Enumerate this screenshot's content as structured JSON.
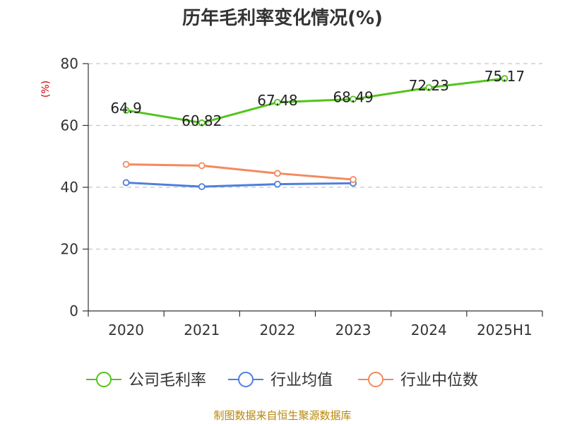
{
  "chart_data": {
    "type": "line",
    "title": "历年毛利率变化情况(%)",
    "unit_label": "(%)",
    "categories": [
      "2020",
      "2021",
      "2022",
      "2023",
      "2024",
      "2025H1"
    ],
    "ylim": [
      0,
      80
    ],
    "yticks": [
      0,
      20,
      40,
      60,
      80
    ],
    "grid": true,
    "legend_position": "bottom",
    "series": [
      {
        "name": "公司毛利率",
        "color": "#52c41a",
        "values": [
          64.9,
          60.82,
          67.48,
          68.49,
          72.23,
          75.17
        ],
        "labels": [
          "64.9",
          "60.82",
          "67.48",
          "68.49",
          "72.23",
          "75.17"
        ]
      },
      {
        "name": "行业均值",
        "color": "#4e7fdc",
        "values": [
          41.5,
          40.2,
          41.0,
          41.3,
          null,
          null
        ]
      },
      {
        "name": "行业中位数",
        "color": "#f4895f",
        "values": [
          47.4,
          47.0,
          44.5,
          42.5,
          null,
          null
        ]
      }
    ]
  },
  "source_text": "制图数据来自恒生聚源数据库"
}
